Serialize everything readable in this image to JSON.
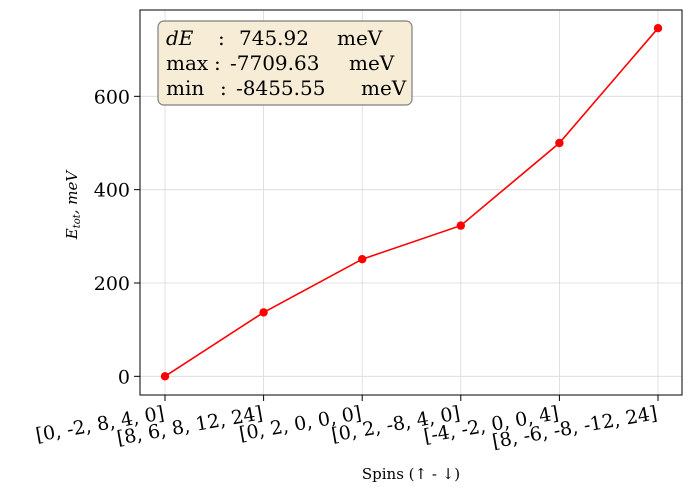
{
  "chart_data": {
    "type": "line",
    "categories": [
      "[0, -2, 8, 4, 0]",
      "[8, 6, 8, 12, 24]",
      "[0, 2, 0, 0, 0]",
      "[0, 2, -8, 4, 0]",
      "[-4, -2, 0, 0, 4]",
      "[8, -6, -8, -12, 24]"
    ],
    "series": [
      {
        "name": "E_tot",
        "values": [
          0,
          137,
          251,
          323,
          500,
          746
        ],
        "color": "#ff0000"
      }
    ],
    "ylim": [
      -40,
      785
    ],
    "yticks": [
      0,
      200,
      400,
      600
    ],
    "xlabel": "Spins (↑ - ↓)",
    "ylabel_main": "E",
    "ylabel_sub": "tot",
    "ylabel_rest": ", meV",
    "grid": true,
    "annotation": {
      "lines": [
        {
          "label": "dE",
          "sep": ":",
          "value": "745.92",
          "unit": "meV"
        },
        {
          "label": "max",
          "sep": ":",
          "value": "-7709.63",
          "unit": "meV"
        },
        {
          "label": "min",
          "sep": ":",
          "value": "-8455.55",
          "unit": "meV"
        }
      ],
      "position": "top-left",
      "box_color": "#f7ecd6"
    }
  }
}
